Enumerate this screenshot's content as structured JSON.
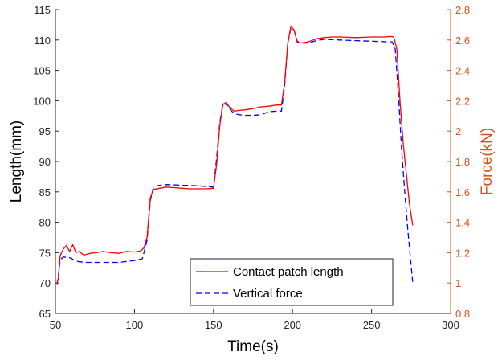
{
  "chart_data": {
    "type": "line",
    "xlabel": "Time(s)",
    "ylabel_left": "Length(mm)",
    "ylabel_right": "Force(kN)",
    "xlim": [
      50,
      300
    ],
    "ylim_left": [
      65,
      115
    ],
    "ylim_right": [
      0.8,
      2.8
    ],
    "xticks": [
      "50",
      "100",
      "150",
      "200",
      "250",
      "300"
    ],
    "yticks_left": [
      "65",
      "70",
      "75",
      "80",
      "85",
      "90",
      "95",
      "100",
      "105",
      "110",
      "115"
    ],
    "yticks_right": [
      "0.8",
      "1",
      "1.2",
      "1.4",
      "1.6",
      "1.8",
      "2",
      "2.2",
      "2.4",
      "2.6",
      "2.8"
    ],
    "grid": false,
    "legend_position": "bottom-right",
    "colors": {
      "contact": "#ff0000",
      "force": "#0000ff",
      "right_axis": "#d95319"
    },
    "series": [
      {
        "name": "Contact patch length",
        "axis": "left",
        "style": "solid",
        "x": [
          51,
          52,
          53,
          55,
          57,
          59,
          61,
          63,
          65,
          68,
          72,
          76,
          80,
          85,
          90,
          95,
          100,
          104,
          106,
          108,
          110,
          112,
          116,
          120,
          125,
          130,
          135,
          140,
          145,
          150,
          152,
          154,
          156,
          158,
          160,
          163,
          166,
          170,
          175,
          180,
          185,
          190,
          193,
          195,
          197,
          199,
          201,
          203,
          205,
          210,
          215,
          220,
          225,
          230,
          240,
          250,
          258,
          262,
          264,
          266,
          268,
          270,
          272,
          274,
          276
        ],
        "y": [
          69.9,
          71.0,
          74.5,
          75.6,
          76.2,
          75.2,
          76.3,
          75.0,
          75.2,
          74.6,
          74.9,
          75.0,
          75.2,
          75.0,
          74.9,
          75.2,
          75.1,
          75.3,
          75.8,
          77.5,
          84.0,
          85.4,
          85.6,
          85.8,
          85.7,
          85.6,
          85.5,
          85.5,
          85.5,
          85.6,
          89.5,
          96.0,
          99.4,
          99.7,
          99.0,
          98.3,
          98.4,
          98.5,
          98.7,
          99.0,
          99.1,
          99.3,
          99.3,
          103.0,
          109.5,
          112.3,
          111.6,
          109.6,
          109.5,
          109.7,
          110.2,
          110.4,
          110.5,
          110.5,
          110.4,
          110.5,
          110.5,
          110.6,
          110.5,
          108.5,
          100.0,
          93.0,
          88.0,
          83.0,
          79.5
        ]
      },
      {
        "name": "Vertical force",
        "axis": "left",
        "style": "dashed",
        "x": [
          51,
          52,
          53,
          55,
          58,
          60,
          62,
          65,
          70,
          80,
          90,
          100,
          105,
          108,
          110,
          112,
          116,
          120,
          130,
          140,
          150,
          152,
          154,
          156,
          158,
          160,
          163,
          166,
          170,
          175,
          180,
          185,
          190,
          193,
          195,
          197,
          199,
          201,
          203,
          205,
          210,
          215,
          220,
          230,
          240,
          250,
          260,
          263,
          265,
          267,
          269,
          271,
          273,
          275,
          276
        ],
        "y": [
          69.7,
          71.5,
          73.8,
          74.3,
          74.2,
          74.1,
          73.7,
          73.5,
          73.4,
          73.4,
          73.4,
          73.7,
          74.0,
          77.0,
          83.5,
          85.8,
          86.1,
          86.2,
          86.1,
          86.0,
          85.8,
          90.5,
          96.5,
          99.5,
          99.4,
          98.7,
          97.9,
          97.7,
          97.6,
          97.6,
          97.7,
          98.2,
          98.3,
          98.3,
          102.5,
          109.5,
          112.0,
          111.6,
          109.8,
          109.5,
          109.5,
          109.9,
          110.1,
          110.0,
          109.9,
          109.8,
          109.7,
          109.7,
          108.5,
          101.0,
          92.0,
          85.0,
          78.5,
          73.0,
          70.2
        ]
      }
    ]
  }
}
